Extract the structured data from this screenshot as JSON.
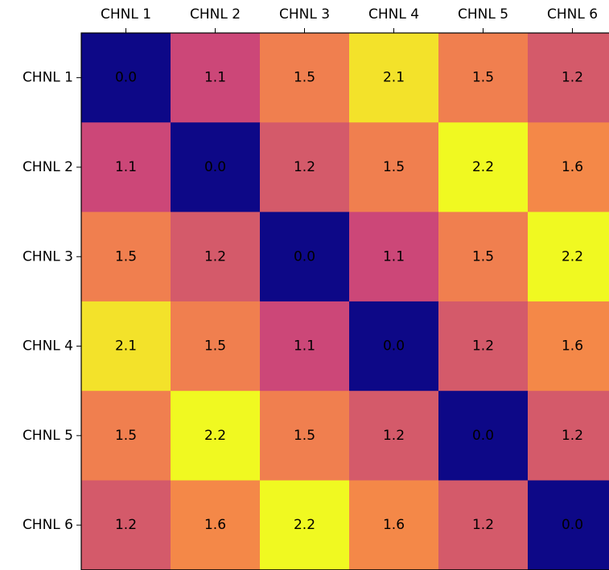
{
  "chart_data": {
    "type": "heatmap",
    "x_categories": [
      "CHNL 1",
      "CHNL 2",
      "CHNL 3",
      "CHNL 4",
      "CHNL 5",
      "CHNL 6"
    ],
    "y_categories": [
      "CHNL 1",
      "CHNL 2",
      "CHNL 3",
      "CHNL 4",
      "CHNL 5",
      "CHNL 6"
    ],
    "values": [
      [
        0.0,
        1.1,
        1.5,
        2.1,
        1.5,
        1.2
      ],
      [
        1.1,
        0.0,
        1.2,
        1.5,
        2.2,
        1.6
      ],
      [
        1.5,
        1.2,
        0.0,
        1.1,
        1.5,
        2.2
      ],
      [
        2.1,
        1.5,
        1.1,
        0.0,
        1.2,
        1.6
      ],
      [
        1.5,
        2.2,
        1.5,
        1.2,
        0.0,
        1.2
      ],
      [
        1.2,
        1.6,
        2.2,
        1.6,
        1.2,
        0.0
      ]
    ],
    "cell_labels": [
      [
        "0.0",
        "1.1",
        "1.5",
        "2.1",
        "1.5",
        "1.2"
      ],
      [
        "1.1",
        "0.0",
        "1.2",
        "1.5",
        "2.2",
        "1.6"
      ],
      [
        "1.5",
        "1.2",
        "0.0",
        "1.1",
        "1.5",
        "2.2"
      ],
      [
        "2.1",
        "1.5",
        "1.1",
        "0.0",
        "1.2",
        "1.6"
      ],
      [
        "1.5",
        "2.2",
        "1.5",
        "1.2",
        "0.0",
        "1.2"
      ],
      [
        "1.2",
        "1.6",
        "2.2",
        "1.6",
        "1.2",
        "0.0"
      ]
    ],
    "x_axis_position": "top",
    "colormap": "plasma",
    "vmin": 0.0,
    "vmax": 2.2,
    "grid": false,
    "colors": {
      "0.0": "#0d0887",
      "1.1": "#cc4778",
      "1.2": "#d45a6a",
      "1.5": "#f07f4f",
      "1.6": "#f48848",
      "2.1": "#f3e22a",
      "2.2": "#f0f921"
    },
    "title": "",
    "xlabel": "",
    "ylabel": ""
  }
}
